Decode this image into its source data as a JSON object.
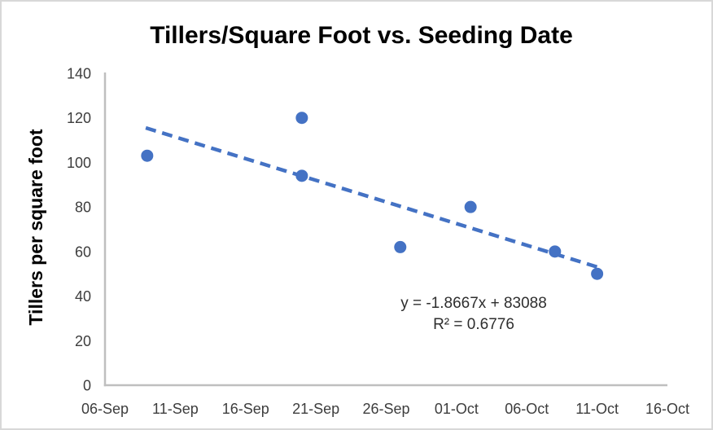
{
  "window": {
    "background": "#ffffff",
    "border_color": "#d8d8d8"
  },
  "chart_data": {
    "type": "scatter",
    "title": "Tillers/Square Foot vs. Seeding Date",
    "xlabel": "",
    "ylabel": "Tillers per square foot",
    "ylim": [
      0,
      140
    ],
    "y_ticks": [
      0,
      20,
      40,
      60,
      80,
      100,
      120,
      140
    ],
    "xlim_days": [
      0,
      40
    ],
    "x_tick_days": [
      0,
      5,
      10,
      15,
      20,
      25,
      30,
      35,
      40
    ],
    "x_tick_labels": [
      "06-Sep",
      "11-Sep",
      "16-Sep",
      "21-Sep",
      "26-Sep",
      "01-Oct",
      "06-Oct",
      "11-Oct",
      "16-Oct"
    ],
    "grid": false,
    "legend": false,
    "points": [
      {
        "date": "09-Sep",
        "day": 3,
        "value": 103
      },
      {
        "date": "20-Sep",
        "day": 14,
        "value": 120
      },
      {
        "date": "20-Sep",
        "day": 14,
        "value": 94
      },
      {
        "date": "27-Sep",
        "day": 21,
        "value": 62
      },
      {
        "date": "02-Oct",
        "day": 26,
        "value": 80
      },
      {
        "date": "08-Oct",
        "day": 32,
        "value": 60
      },
      {
        "date": "11-Oct",
        "day": 35,
        "value": 50
      }
    ],
    "trendline": {
      "style": "dashed",
      "start": {
        "day": 2.9,
        "value": 115.5
      },
      "end": {
        "day": 35.3,
        "value": 52.5
      },
      "equation": "y = -1.8667x + 83088",
      "r_squared": "R² = 0.6776"
    },
    "colors": {
      "marker": "#4472C4",
      "trendline": "#4472C4",
      "axis": "#bfbfbf",
      "tick_text": "#3d3d3d",
      "title_text": "#000000"
    }
  }
}
